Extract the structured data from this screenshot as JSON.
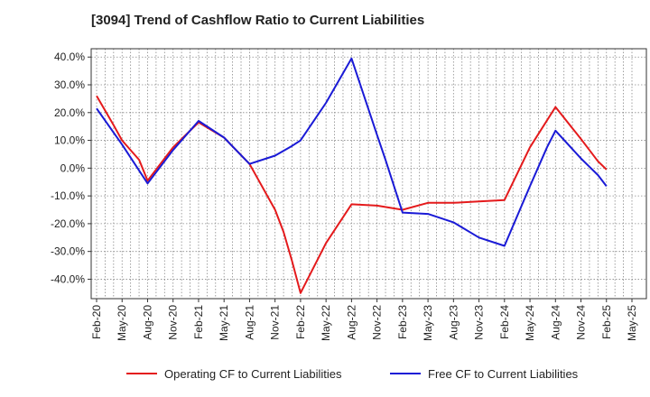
{
  "chart_data": {
    "type": "line",
    "title": "[3094]  Trend of Cashflow Ratio to Current Liabilities",
    "xlabel": "",
    "ylabel": "",
    "x_tick_labels": [
      "Feb-20",
      "May-20",
      "Aug-20",
      "Nov-20",
      "Feb-21",
      "May-21",
      "Aug-21",
      "Nov-21",
      "Feb-22",
      "May-22",
      "Aug-22",
      "Nov-22",
      "Feb-23",
      "May-23",
      "Aug-23",
      "Nov-23",
      "Feb-24",
      "May-24",
      "Aug-24",
      "Nov-24",
      "Feb-25",
      "May-25"
    ],
    "y_tick_labels": [
      "40.0%",
      "30.0%",
      "20.0%",
      "10.0%",
      "0.0%",
      "-10.0%",
      "-20.0%",
      "-30.0%",
      "-40.0%"
    ],
    "y_ticks": [
      40,
      30,
      20,
      10,
      0,
      -10,
      -20,
      -30,
      -40
    ],
    "ylim": [
      -47,
      43
    ],
    "grid": true,
    "legend_position": "bottom",
    "series": [
      {
        "name": "Operating CF to Current Liabilities",
        "color": "#e41a1c",
        "points": [
          [
            "Feb-20",
            26.0
          ],
          [
            "Apr-20",
            15.5
          ],
          [
            "May-20",
            10.0
          ],
          [
            "Jul-20",
            3.0
          ],
          [
            "Aug-20",
            -4.5
          ],
          [
            "Nov-20",
            7.5
          ],
          [
            "Feb-21",
            16.5
          ],
          [
            "May-21",
            11.0
          ],
          [
            "Aug-21",
            1.5
          ],
          [
            "Nov-21",
            -15.0
          ],
          [
            "Dec-21",
            -23.0
          ],
          [
            "Jan-22",
            -33.5
          ],
          [
            "Feb-22",
            -45.0
          ],
          [
            "May-22",
            -27.0
          ],
          [
            "Aug-22",
            -13.0
          ],
          [
            "Nov-22",
            -13.5
          ],
          [
            "Feb-23",
            -15.0
          ],
          [
            "May-23",
            -12.5
          ],
          [
            "Aug-23",
            -12.5
          ],
          [
            "Nov-23",
            -12.0
          ],
          [
            "Feb-24",
            -11.5
          ],
          [
            "May-24",
            7.5
          ],
          [
            "Aug-24",
            22.0
          ],
          [
            "Nov-24",
            10.5
          ],
          [
            "Dec-24",
            6.5
          ],
          [
            "Jan-25",
            2.5
          ],
          [
            "Feb-25",
            -0.5
          ]
        ]
      },
      {
        "name": "Free CF to Current Liabilities",
        "color": "#1a1ad6",
        "points": [
          [
            "Feb-20",
            21.5
          ],
          [
            "May-20",
            8.5
          ],
          [
            "Aug-20",
            -5.5
          ],
          [
            "Nov-20",
            6.5
          ],
          [
            "Feb-21",
            17.0
          ],
          [
            "May-21",
            11.0
          ],
          [
            "Aug-21",
            1.5
          ],
          [
            "Nov-21",
            4.5
          ],
          [
            "Jan-22",
            8.0
          ],
          [
            "Feb-22",
            10.0
          ],
          [
            "May-22",
            23.5
          ],
          [
            "Aug-22",
            39.5
          ],
          [
            "Nov-22",
            12.0
          ],
          [
            "Dec-22",
            3.0
          ],
          [
            "Feb-23",
            -16.0
          ],
          [
            "May-23",
            -16.5
          ],
          [
            "Aug-23",
            -19.5
          ],
          [
            "Nov-23",
            -25.0
          ],
          [
            "Feb-24",
            -28.0
          ],
          [
            "May-24",
            -6.5
          ],
          [
            "Jul-24",
            7.5
          ],
          [
            "Aug-24",
            13.5
          ],
          [
            "Nov-24",
            3.5
          ],
          [
            "Dec-24",
            0.5
          ],
          [
            "Jan-25",
            -2.5
          ],
          [
            "Feb-25",
            -6.5
          ]
        ]
      }
    ]
  }
}
